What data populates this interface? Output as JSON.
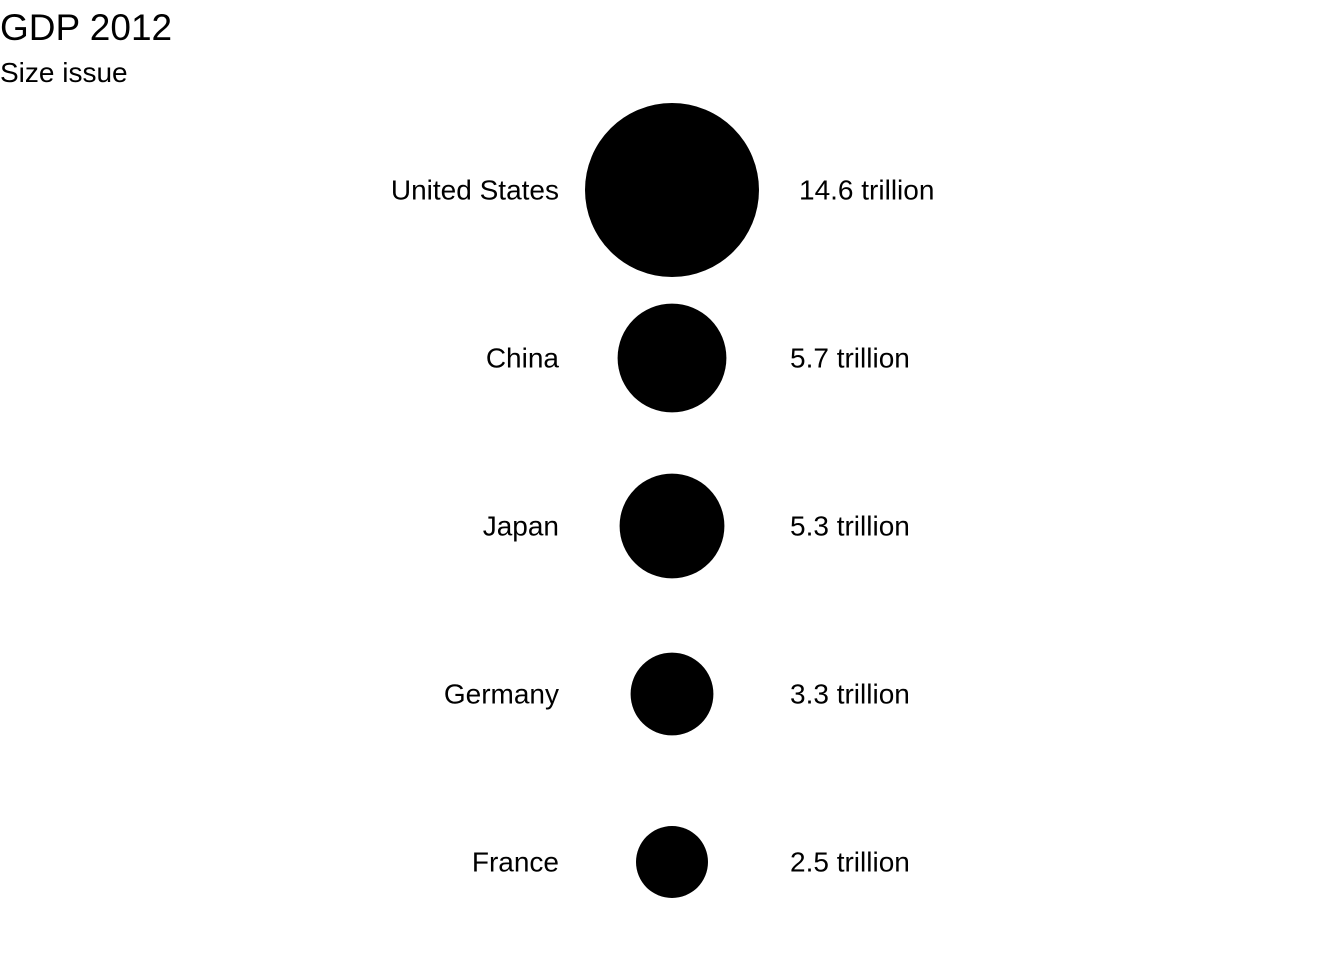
{
  "chart_data": {
    "type": "scatter",
    "title": "GDP 2012",
    "subtitle": "Size issue",
    "categories": [
      "United States",
      "China",
      "Japan",
      "Germany",
      "France"
    ],
    "series": [
      {
        "values": [
          14.6,
          5.7,
          5.3,
          3.3,
          2.5
        ],
        "labels": [
          "14.6 trillion",
          "5.7 trillion",
          "5.3 trillion",
          "3.3 trillion",
          "2.5 trillion"
        ]
      }
    ],
    "marker_size_encodes": "value",
    "grid": false,
    "legend": "none",
    "colors": {
      "marker": "#000000",
      "text": "#000000",
      "background": "#ffffff"
    }
  }
}
